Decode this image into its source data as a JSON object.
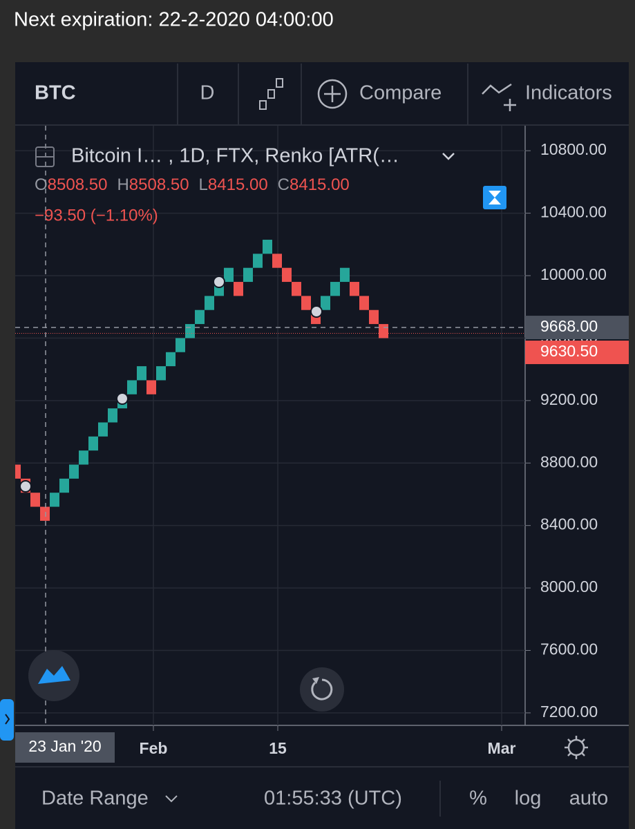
{
  "header": {
    "expiration": "Next expiration: 22-2-2020 04:00:00"
  },
  "toolbar": {
    "symbol": "BTC",
    "interval": "D",
    "compare": "Compare",
    "indicators": "Indicators"
  },
  "legend": {
    "title": "Bitcoin I… , 1D, FTX, Renko [ATR(…",
    "ohlc": [
      {
        "label": "O",
        "value": "8508.50"
      },
      {
        "label": "H",
        "value": "8508.50"
      },
      {
        "label": "L",
        "value": "8415.00"
      },
      {
        "label": "C",
        "value": "8415.00"
      }
    ],
    "change": "−93.50 (−1.10%)"
  },
  "chart_data": {
    "type": "renko",
    "up_color": "#26a69a",
    "down_color": "#ef5350",
    "open": [
      8790,
      8700,
      8610,
      8520,
      8520,
      8610,
      8700,
      8790,
      8880,
      8970,
      9060,
      9150,
      9240,
      9330,
      9330,
      9330,
      9420,
      9510,
      9600,
      9690,
      9780,
      9870,
      9960,
      9960,
      9960,
      10050,
      10140,
      10140,
      10050,
      9960,
      9870,
      9780,
      9780,
      9870,
      9960,
      9960,
      9870,
      9780,
      9690
    ],
    "close": [
      8700,
      8610,
      8520,
      8430,
      8610,
      8700,
      8790,
      8880,
      8970,
      9060,
      9150,
      9240,
      9330,
      9420,
      9240,
      9420,
      9510,
      9600,
      9690,
      9780,
      9870,
      9960,
      10050,
      9870,
      10050,
      10140,
      10230,
      10050,
      9960,
      9870,
      9780,
      9690,
      9870,
      9960,
      10050,
      9870,
      9780,
      9690,
      9600
    ],
    "ylim": [
      7120,
      10960
    ],
    "yticks": [
      {
        "value": 7200,
        "label": "7200.00"
      },
      {
        "value": 7600,
        "label": "7600.00"
      },
      {
        "value": 8000,
        "label": "8000.00"
      },
      {
        "value": 8400,
        "label": "8400.00"
      },
      {
        "value": 8800,
        "label": "8800.00"
      },
      {
        "value": 9200,
        "label": "9200.00"
      },
      {
        "value": 9600,
        "label": "9600.00"
      },
      {
        "value": 10000,
        "label": "10000.00"
      },
      {
        "value": 10400,
        "label": "10400.00"
      },
      {
        "value": 10800,
        "label": "10800.00"
      }
    ],
    "crosshair": {
      "value": 9668,
      "label": "9668.00",
      "date": "23 Jan '20"
    },
    "last_price": {
      "value": 9630.5,
      "label": "9630.50"
    },
    "x_labels": [
      "Feb",
      "15",
      "Mar"
    ],
    "grid": true
  },
  "footer": {
    "date_range": "Date Range",
    "time": "01:55:33 (UTC)",
    "percent": "%",
    "log": "log",
    "auto": "auto"
  }
}
